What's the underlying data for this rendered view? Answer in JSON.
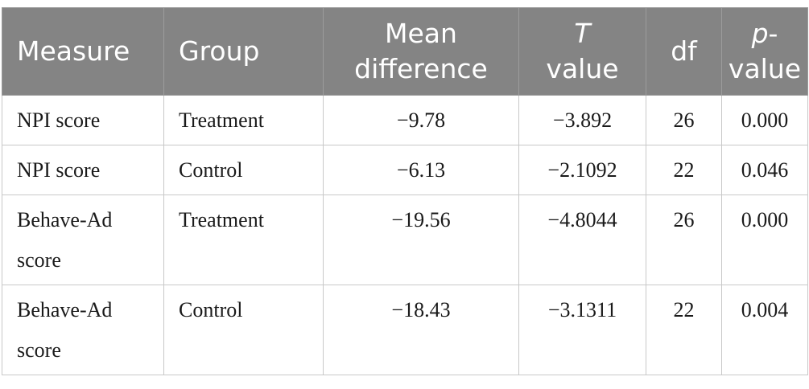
{
  "table": {
    "headers": {
      "measure": "Measure",
      "group": "Group",
      "mean_line1": "Mean",
      "mean_line2": "difference",
      "t_italic": "T",
      "t_rest": "value",
      "df": "df",
      "p_italic": "p",
      "p_dash": "-",
      "p_rest": "value"
    },
    "rows": [
      {
        "measure_line1": "NPI score",
        "measure_line2": "",
        "group": "Treatment",
        "mean_difference": "−9.78",
        "t_value": "−3.892",
        "df": "26",
        "p_value": "0.000"
      },
      {
        "measure_line1": "NPI score",
        "measure_line2": "",
        "group": "Control",
        "mean_difference": "−6.13",
        "t_value": "−2.1092",
        "df": "22",
        "p_value": "0.046"
      },
      {
        "measure_line1": "Behave-Ad",
        "measure_line2": "score",
        "group": "Treatment",
        "mean_difference": "−19.56",
        "t_value": "−4.8044",
        "df": "26",
        "p_value": "0.000"
      },
      {
        "measure_line1": "Behave-Ad",
        "measure_line2": "score",
        "group": "Control",
        "mean_difference": "−18.43",
        "t_value": "−3.1311",
        "df": "22",
        "p_value": "0.004"
      }
    ]
  }
}
